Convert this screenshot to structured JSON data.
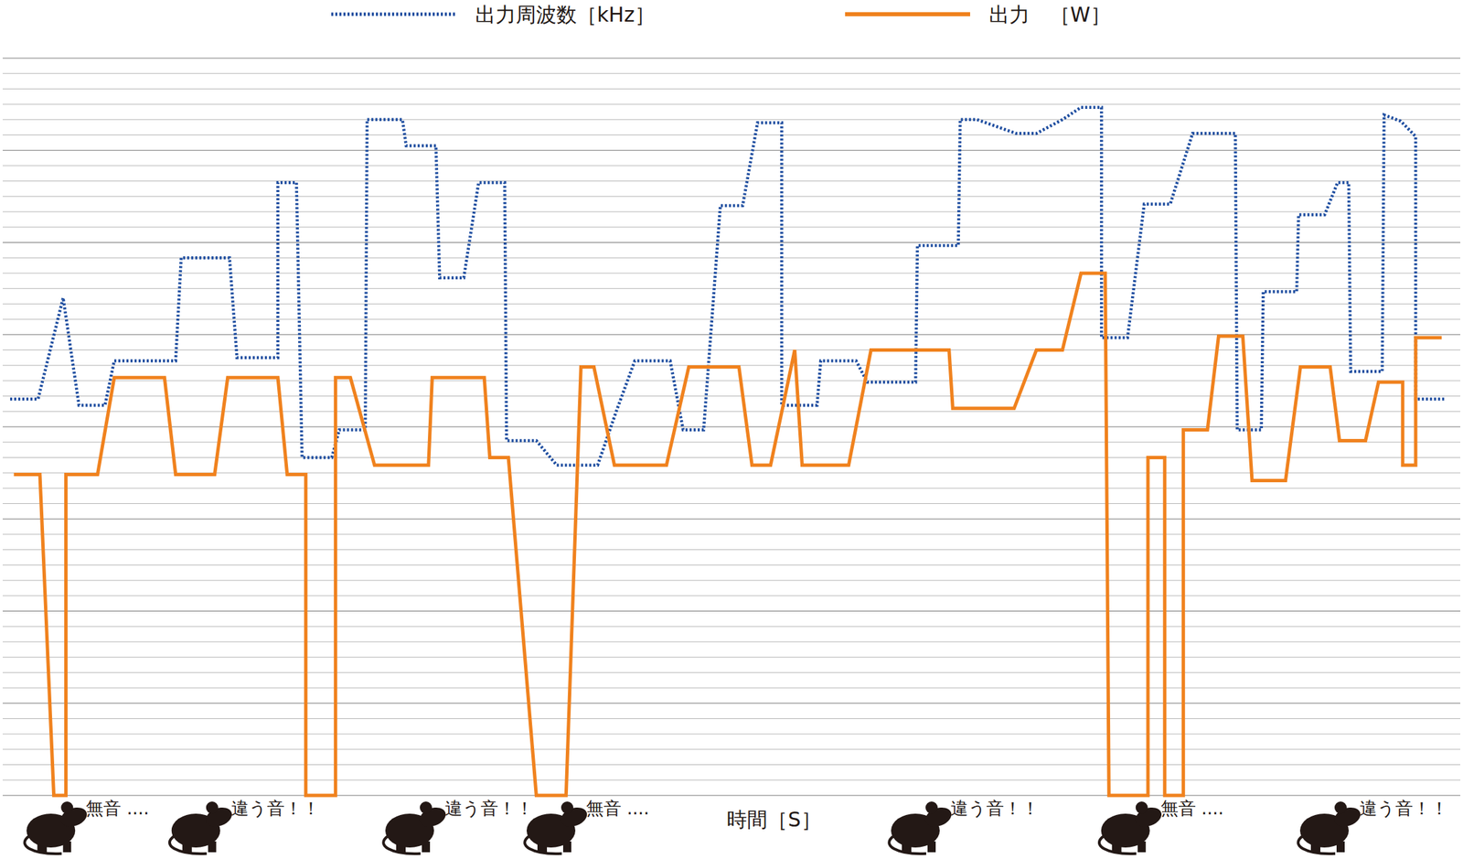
{
  "chart_data": {
    "type": "line",
    "x_label": "時間［S］",
    "xlim": [
      0,
      1568
    ],
    "ylim": [
      0,
      48
    ],
    "yticks": [
      0,
      1,
      2,
      3,
      4,
      5,
      6,
      7,
      8,
      9,
      10,
      11,
      12,
      13,
      14,
      15,
      16,
      17,
      18,
      19,
      20,
      21,
      22,
      23,
      24,
      25,
      26,
      27,
      28,
      29,
      30,
      31,
      32,
      33,
      34,
      35,
      36,
      37,
      38,
      39,
      40,
      41,
      42,
      43,
      44,
      45,
      46,
      47,
      48
    ],
    "grid": true,
    "tick_labels": false,
    "legend": "top",
    "series": [
      {
        "name": "出力周波数［kHz］",
        "color": "#1f4ea0",
        "line_style": "dotted",
        "x": [
          8,
          38,
          65,
          82,
          110,
          120,
          186,
          192,
          244,
          252,
          296,
          296,
          316,
          322,
          354,
          362,
          390,
          392,
          430,
          434,
          466,
          470,
          496,
          512,
          540,
          542,
          574,
          596,
          640,
          660,
          680,
          718,
          732,
          754,
          772,
          796,
          812,
          838,
          838,
          876,
          880,
          918,
          930,
          982,
          984,
          1028,
          1030,
          1048,
          1090,
          1112,
          1140,
          1160,
          1182,
          1182,
          1210,
          1228,
          1256,
          1280,
          1326,
          1328,
          1354,
          1356,
          1392,
          1394,
          1422,
          1436,
          1448,
          1450,
          1484,
          1486,
          1504,
          1520,
          1520,
          1552
        ],
        "values": [
          25.8,
          25.8,
          32.4,
          25.4,
          25.4,
          28.3,
          28.3,
          35,
          35,
          28.5,
          28.5,
          39.9,
          39.9,
          22,
          22,
          23.8,
          23.8,
          44,
          44,
          42.3,
          42.3,
          33.7,
          33.7,
          39.9,
          39.9,
          23.1,
          23.1,
          21.5,
          21.5,
          25,
          28.3,
          28.3,
          23.8,
          23.8,
          38.4,
          38.4,
          43.8,
          43.8,
          25.4,
          25.4,
          28.3,
          28.3,
          26.9,
          26.9,
          35.8,
          35.8,
          44,
          44,
          43.1,
          43.1,
          44,
          44.8,
          44.8,
          29.8,
          29.8,
          38.5,
          38.5,
          43.1,
          43.1,
          23.8,
          23.8,
          32.8,
          32.8,
          37.8,
          37.8,
          39.9,
          39.9,
          27.6,
          27.6,
          44.3,
          43.9,
          42.9,
          25.8,
          25.8
        ]
      },
      {
        "name": "出力　［W］",
        "color": "#f0821e",
        "line_style": "solid",
        "x": [
          12,
          40,
          55,
          68,
          68,
          102,
          120,
          174,
          186,
          228,
          242,
          296,
          306,
          326,
          326,
          358,
          358,
          374,
          400,
          458,
          462,
          518,
          524,
          544,
          574,
          606,
          622,
          636,
          658,
          714,
          738,
          792,
          806,
          826,
          852,
          860,
          910,
          934,
          1018,
          1022,
          1088,
          1112,
          1140,
          1160,
          1186,
          1190,
          1232,
          1232,
          1250,
          1250,
          1270,
          1270,
          1296,
          1308,
          1334,
          1344,
          1380,
          1396,
          1428,
          1438,
          1466,
          1480,
          1506,
          1506,
          1520,
          1520,
          1548
        ],
        "values": [
          20.9,
          20.9,
          0,
          0,
          20.9,
          20.9,
          27.2,
          27.2,
          20.9,
          20.9,
          27.2,
          27.2,
          20.9,
          20.9,
          0,
          0,
          27.2,
          27.2,
          21.5,
          21.5,
          27.2,
          27.2,
          22,
          22,
          0,
          0,
          27.9,
          27.9,
          21.5,
          21.5,
          27.9,
          27.9,
          21.5,
          21.5,
          29,
          21.5,
          21.5,
          29,
          29,
          25.2,
          25.2,
          29,
          29,
          34,
          34,
          0,
          0,
          22,
          22,
          0,
          0,
          23.8,
          23.8,
          29.9,
          29.9,
          20.5,
          20.5,
          27.9,
          27.9,
          23.1,
          23.1,
          26.9,
          26.9,
          21.5,
          21.5,
          29.8,
          29.8
        ]
      }
    ],
    "annotations": [
      {
        "text": "無音 ....",
        "x": 62
      },
      {
        "text": "違う音！！",
        "x": 218
      },
      {
        "text": "違う音！！",
        "x": 448
      },
      {
        "text": "無音 ....",
        "x": 600
      },
      {
        "text": "違う音！！",
        "x": 992
      },
      {
        "text": "無音 ....",
        "x": 1218
      },
      {
        "text": "違う音！！",
        "x": 1432
      }
    ]
  }
}
